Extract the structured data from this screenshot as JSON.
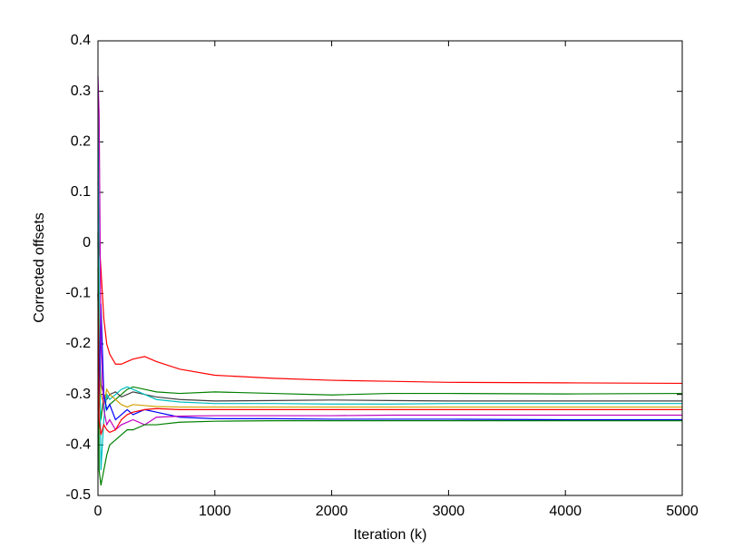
{
  "chart_data": {
    "type": "line",
    "x_label": "Iteration (k)",
    "y_label": "Corrected offsets",
    "x": [
      0,
      10,
      25,
      50,
      75,
      100,
      150,
      200,
      250,
      300,
      400,
      500,
      700,
      1000,
      1500,
      2000,
      2500,
      3000,
      4000,
      5000
    ],
    "series": [
      {
        "color": "#ff0000",
        "values": [
          0.12,
          0.0,
          -0.05,
          -0.15,
          -0.2,
          -0.22,
          -0.24,
          -0.24,
          -0.235,
          -0.23,
          -0.225,
          -0.235,
          -0.25,
          -0.262,
          -0.268,
          -0.272,
          -0.274,
          -0.276,
          -0.277,
          -0.278
        ]
      },
      {
        "color": "#008000",
        "values": [
          -0.1,
          -0.3,
          -0.35,
          -0.3,
          -0.33,
          -0.32,
          -0.31,
          -0.3,
          -0.29,
          -0.285,
          -0.29,
          -0.295,
          -0.298,
          -0.295,
          -0.298,
          -0.301,
          -0.298,
          -0.298,
          -0.299,
          -0.298
        ]
      },
      {
        "color": "#404040",
        "values": [
          0.0,
          -0.2,
          -0.28,
          -0.3,
          -0.31,
          -0.3,
          -0.295,
          -0.305,
          -0.3,
          -0.295,
          -0.3,
          -0.305,
          -0.31,
          -0.313,
          -0.312,
          -0.311,
          -0.312,
          -0.313,
          -0.313,
          -0.313
        ]
      },
      {
        "color": "#00bfbf",
        "values": [
          0.3,
          -0.1,
          -0.45,
          -0.35,
          -0.3,
          -0.31,
          -0.3,
          -0.29,
          -0.285,
          -0.29,
          -0.3,
          -0.31,
          -0.315,
          -0.318,
          -0.318,
          -0.319,
          -0.319,
          -0.318,
          -0.318,
          -0.318
        ]
      },
      {
        "color": "#d0a000",
        "values": [
          -0.05,
          -0.25,
          -0.3,
          -0.32,
          -0.29,
          -0.3,
          -0.31,
          -0.32,
          -0.325,
          -0.32,
          -0.322,
          -0.324,
          -0.325,
          -0.325,
          -0.325,
          -0.325,
          -0.325,
          -0.325,
          -0.325,
          -0.325
        ]
      },
      {
        "color": "#0000ff",
        "values": [
          -0.1,
          -0.3,
          -0.12,
          -0.3,
          -0.33,
          -0.32,
          -0.35,
          -0.34,
          -0.33,
          -0.34,
          -0.33,
          -0.335,
          -0.345,
          -0.348,
          -0.348,
          -0.349,
          -0.349,
          -0.349,
          -0.35,
          -0.35
        ]
      },
      {
        "color": "#bf00bf",
        "values": [
          0.33,
          0.25,
          -0.2,
          -0.33,
          -0.36,
          -0.35,
          -0.37,
          -0.36,
          -0.355,
          -0.35,
          -0.36,
          -0.345,
          -0.343,
          -0.342,
          -0.342,
          -0.342,
          -0.341,
          -0.341,
          -0.341,
          -0.341
        ]
      },
      {
        "color": "#008000",
        "values": [
          0.02,
          -0.45,
          -0.48,
          -0.45,
          -0.42,
          -0.4,
          -0.39,
          -0.38,
          -0.37,
          -0.37,
          -0.36,
          -0.36,
          -0.355,
          -0.353,
          -0.352,
          -0.352,
          -0.352,
          -0.352,
          -0.352,
          -0.352
        ]
      },
      {
        "color": "#ff0000",
        "values": [
          -0.1,
          -0.35,
          -0.38,
          -0.36,
          -0.37,
          -0.375,
          -0.37,
          -0.35,
          -0.34,
          -0.335,
          -0.33,
          -0.328,
          -0.33,
          -0.33,
          -0.33,
          -0.33,
          -0.33,
          -0.33,
          -0.33,
          -0.33
        ]
      }
    ],
    "xlim": [
      0,
      5000
    ],
    "xticks": [
      0,
      1000,
      2000,
      3000,
      4000,
      5000
    ],
    "ylim": [
      -0.5,
      0.4
    ],
    "yticks": [
      -0.5,
      -0.4,
      -0.3,
      -0.2,
      -0.1,
      0,
      0.1,
      0.2,
      0.3,
      0.4
    ],
    "grid": false
  }
}
